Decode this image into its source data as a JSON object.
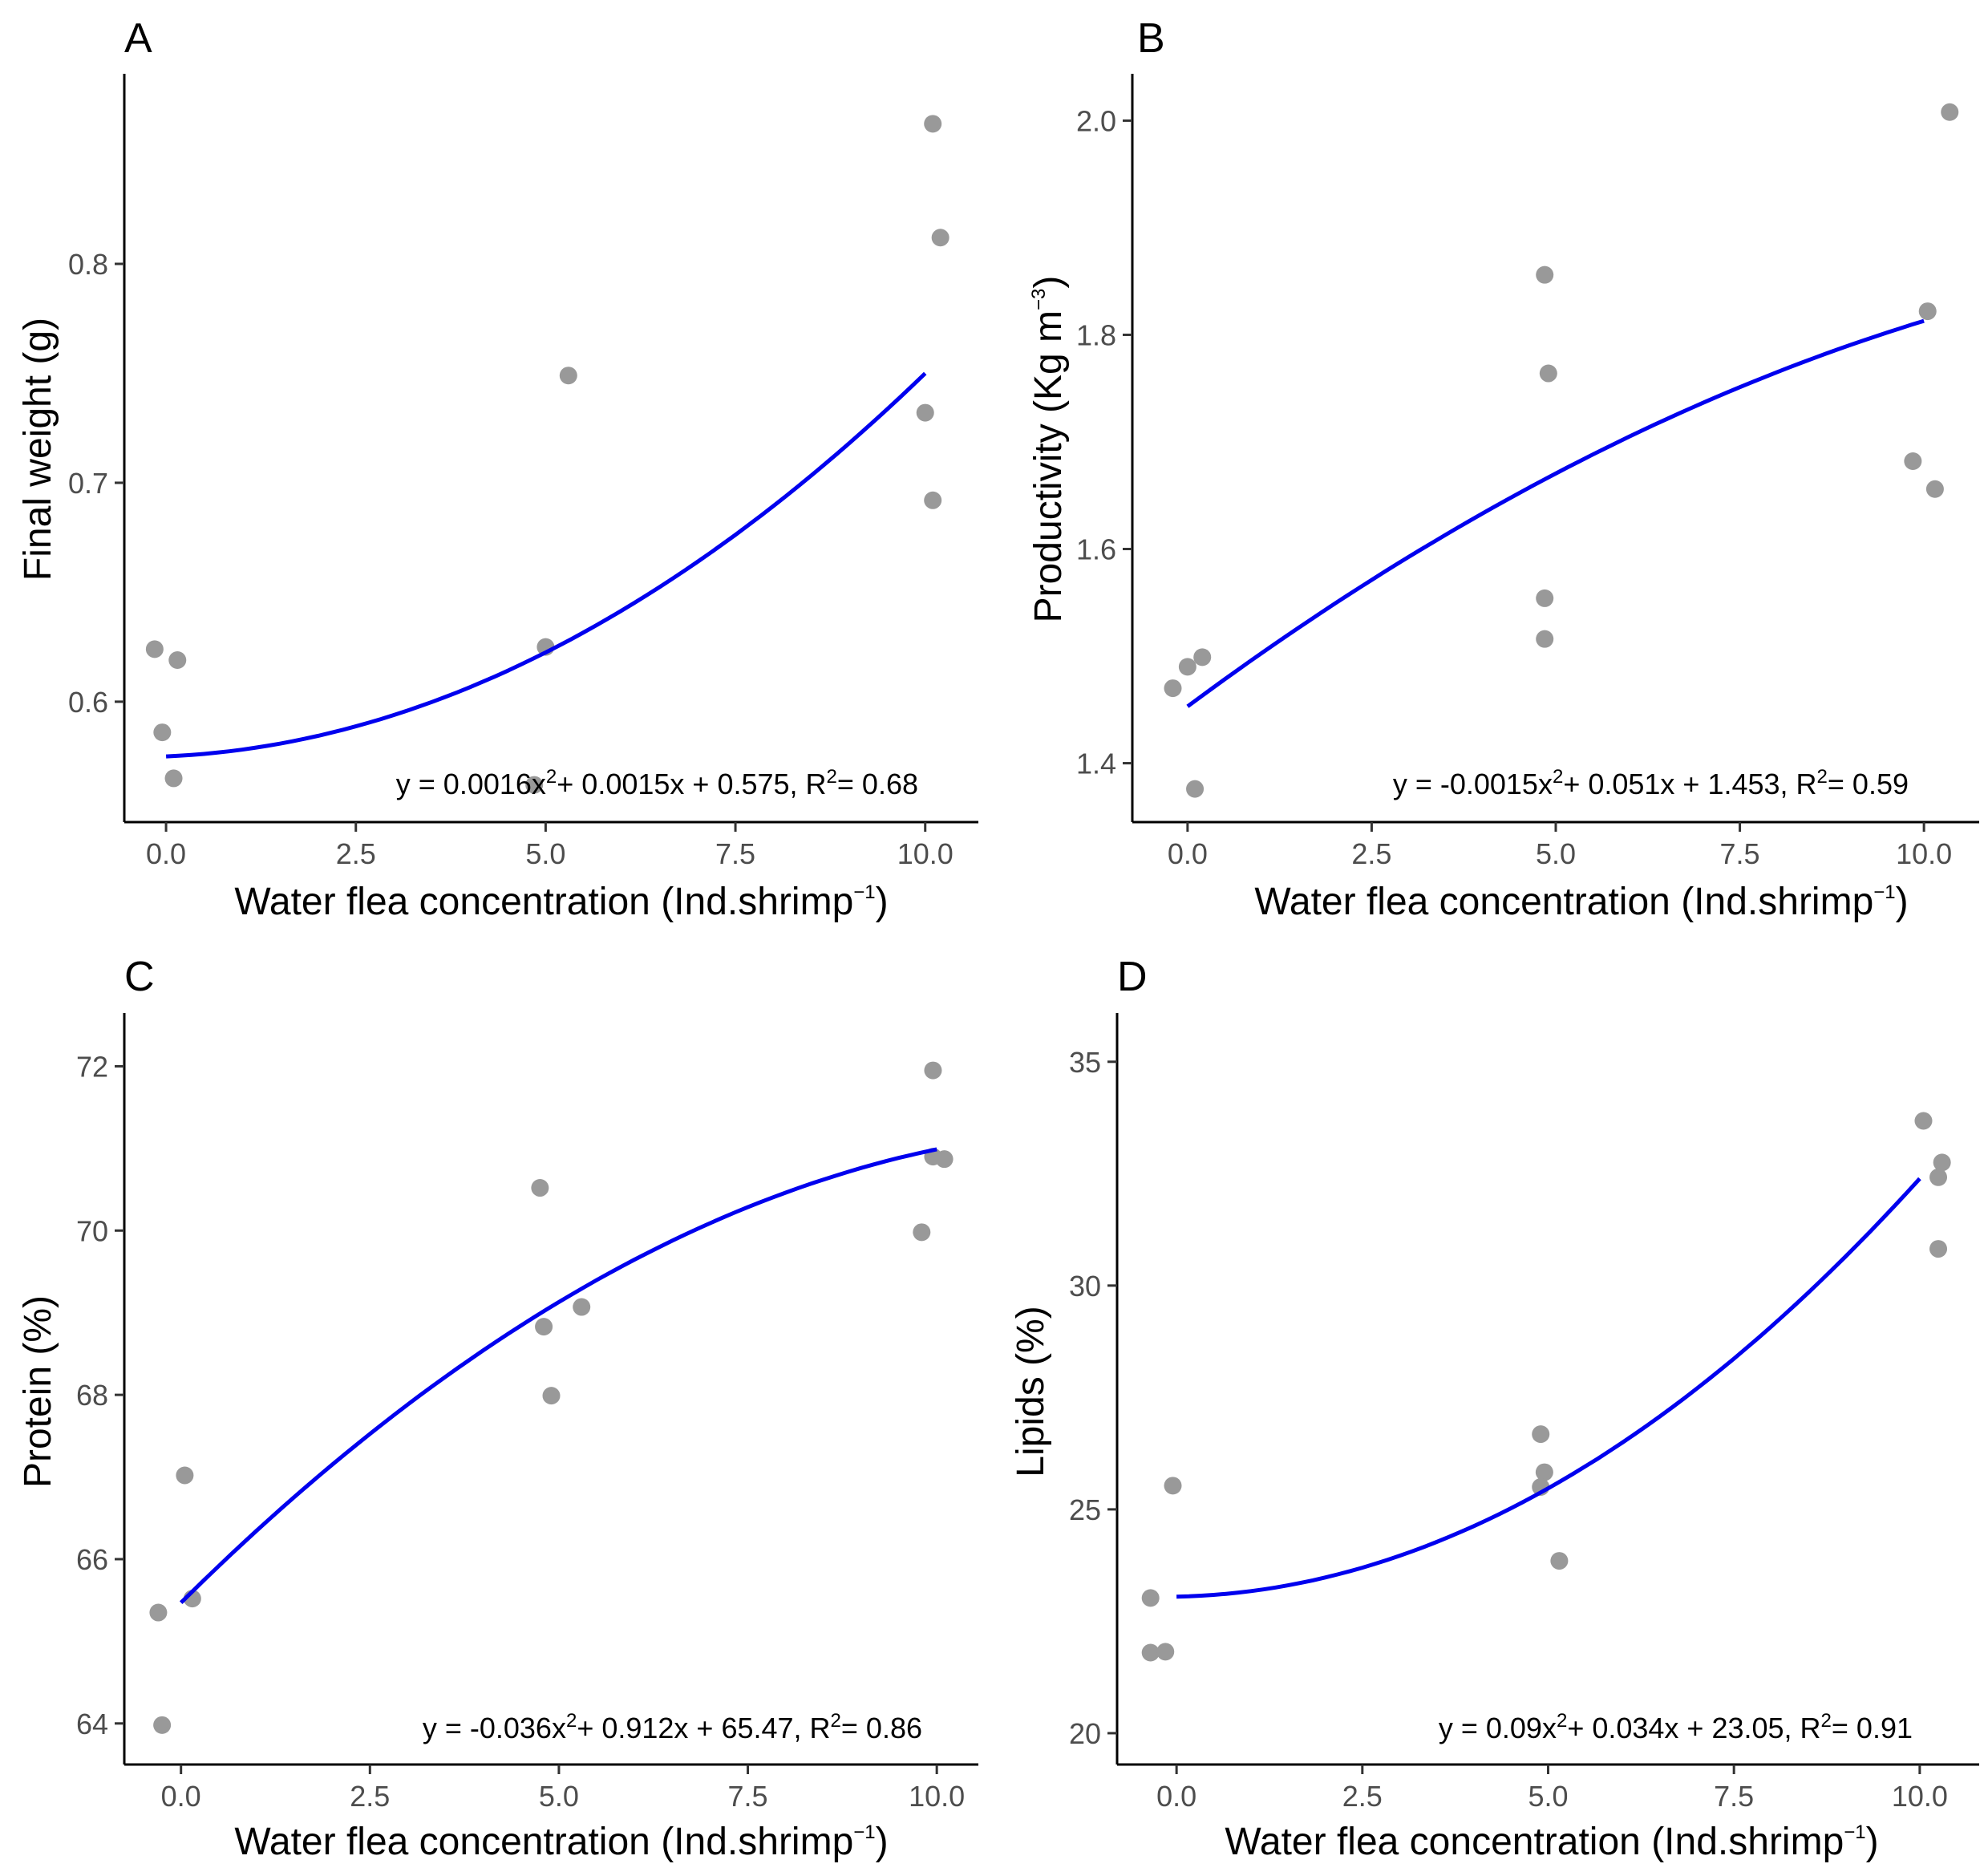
{
  "colors": {
    "points": "#999999",
    "fit_line": "#0000ee",
    "axis": "#000000",
    "tick_text": "#4d4d4d"
  },
  "chart_data": [
    {
      "type": "scatter",
      "panel": "A",
      "xlabel": "Water flea concentration (Ind.shrimp",
      "xlabel_sup": "−1",
      "xlabel_end": ")",
      "ylabel": "Final weight  (g)",
      "xlim": [
        -0.55,
        10.7
      ],
      "ylim": [
        0.545,
        0.885
      ],
      "xticks": [
        0.0,
        2.5,
        5.0,
        7.5,
        10.0
      ],
      "xtick_labels": [
        "0.0",
        "2.5",
        "5.0",
        "7.5",
        "10.0"
      ],
      "yticks": [
        0.6,
        0.7,
        0.8
      ],
      "ytick_labels": [
        "0.6",
        "0.7",
        "0.8"
      ],
      "points": [
        [
          -0.15,
          0.624
        ],
        [
          0.15,
          0.619
        ],
        [
          -0.05,
          0.586
        ],
        [
          0.1,
          0.565
        ],
        [
          4.85,
          0.562
        ],
        [
          5.0,
          0.625
        ],
        [
          5.3,
          0.749
        ],
        [
          10.1,
          0.864
        ],
        [
          10.2,
          0.812
        ],
        [
          10.0,
          0.732
        ],
        [
          10.1,
          0.692
        ]
      ],
      "fit": {
        "a": 0.0016,
        "b": 0.0015,
        "c": 0.575,
        "x_from": 0.0,
        "x_to": 10.0
      },
      "equation": {
        "prefix": "y = 0.0016x",
        "sup": "2",
        "middle": "+ 0.0015x + 0.575, R",
        "sup2": "2",
        "suffix": "= 0.68"
      }
    },
    {
      "type": "scatter",
      "panel": "B",
      "xlabel": "Water flea concentration (Ind.shrimp",
      "xlabel_sup": "−1",
      "xlabel_end": ")",
      "ylabel": "Productivity  (Kg m",
      "ylabel_sup": "−3",
      "ylabel_end": ")",
      "xlim": [
        -0.75,
        10.75
      ],
      "ylis": null,
      "ylim": [
        1.345,
        2.04
      ],
      "xticks": [
        0.0,
        2.5,
        5.0,
        7.5,
        10.0
      ],
      "xtick_labels": [
        "0.0",
        "2.5",
        "5.0",
        "7.5",
        "10.0"
      ],
      "yticks": [
        1.4,
        1.6,
        1.8,
        2.0
      ],
      "ytick_labels": [
        "1.4",
        "1.6",
        "1.8",
        "2.0"
      ],
      "points": [
        [
          -0.2,
          1.47
        ],
        [
          0.0,
          1.49
        ],
        [
          0.2,
          1.499
        ],
        [
          0.1,
          1.376
        ],
        [
          4.85,
          1.856
        ],
        [
          4.9,
          1.764
        ],
        [
          4.85,
          1.554
        ],
        [
          4.85,
          1.516
        ],
        [
          10.05,
          1.822
        ],
        [
          9.85,
          1.682
        ],
        [
          10.15,
          1.656
        ],
        [
          10.35,
          2.008
        ]
      ],
      "fit": {
        "a": -0.0015,
        "b": 0.051,
        "c": 1.453,
        "x_from": 0.0,
        "x_to": 10.0
      },
      "equation": {
        "prefix": "y = -0.0015x",
        "sup": "2",
        "middle": "+ 0.051x + 1.453, R",
        "sup2": "2",
        "suffix": "= 0.59"
      }
    },
    {
      "type": "scatter",
      "panel": "C",
      "xlabel": "Water flea concentration (Ind.shrimp",
      "xlabel_sup": "−1",
      "xlabel_end": ")",
      "ylabel": "Protein (%)",
      "xlim": [
        -0.75,
        10.55
      ],
      "ylim": [
        63.5,
        72.6
      ],
      "xticks": [
        0.0,
        2.5,
        5.0,
        7.5,
        10.0
      ],
      "xtick_labels": [
        "0.0",
        "2.5",
        "5.0",
        "7.5",
        "10.0"
      ],
      "yticks": [
        64,
        66,
        68,
        70,
        72
      ],
      "ytick_labels": [
        "64",
        "66",
        "68",
        "70",
        "72"
      ],
      "points": [
        [
          -0.3,
          65.35
        ],
        [
          0.05,
          67.02
        ],
        [
          0.15,
          65.52
        ],
        [
          -0.25,
          63.98
        ],
        [
          4.75,
          70.52
        ],
        [
          4.8,
          68.83
        ],
        [
          5.3,
          69.07
        ],
        [
          4.9,
          67.99
        ],
        [
          9.95,
          71.95
        ],
        [
          9.95,
          70.9
        ],
        [
          10.1,
          70.87
        ],
        [
          9.8,
          69.98
        ]
      ],
      "fit": {
        "a": -0.036,
        "b": 0.912,
        "c": 65.47,
        "x_from": 0.0,
        "x_to": 10.0
      },
      "equation": {
        "prefix": "y = -0.036x",
        "sup": "2",
        "middle": "+ 0.912x + 65.47, R",
        "sup2": "2",
        "suffix": "= 0.86"
      }
    },
    {
      "type": "scatter",
      "panel": "D",
      "xlabel": "Water flea concentration (Ind.shrimp",
      "xlabel_sup": "−1",
      "xlabel_end": ")",
      "ylabel": "Lipids (%)",
      "xlim": [
        -0.8,
        10.8
      ],
      "ylim": [
        19.3,
        36.0
      ],
      "xticks": [
        0.0,
        2.5,
        5.0,
        7.5,
        10.0
      ],
      "xtick_labels": [
        "0.0",
        "2.5",
        "5.0",
        "7.5",
        "10.0"
      ],
      "yticks": [
        20,
        25,
        30,
        35
      ],
      "ytick_labels": [
        "20",
        "25",
        "30",
        "35"
      ],
      "points": [
        [
          -0.35,
          23.02
        ],
        [
          -0.05,
          25.53
        ],
        [
          -0.35,
          21.8
        ],
        [
          -0.15,
          21.82
        ],
        [
          4.9,
          26.68
        ],
        [
          4.95,
          25.83
        ],
        [
          4.9,
          25.5
        ],
        [
          5.15,
          23.85
        ],
        [
          10.05,
          33.68
        ],
        [
          10.3,
          32.75
        ],
        [
          10.25,
          32.42
        ],
        [
          10.25,
          30.82
        ]
      ],
      "fit": {
        "a": 0.09,
        "b": 0.034,
        "c": 23.05,
        "x_from": 0.0,
        "x_to": 10.0
      },
      "equation": {
        "prefix": "y = 0.09x",
        "sup": "2",
        "middle": "+ 0.034x + 23.05, R",
        "sup2": "2",
        "suffix": "= 0.91"
      }
    }
  ]
}
